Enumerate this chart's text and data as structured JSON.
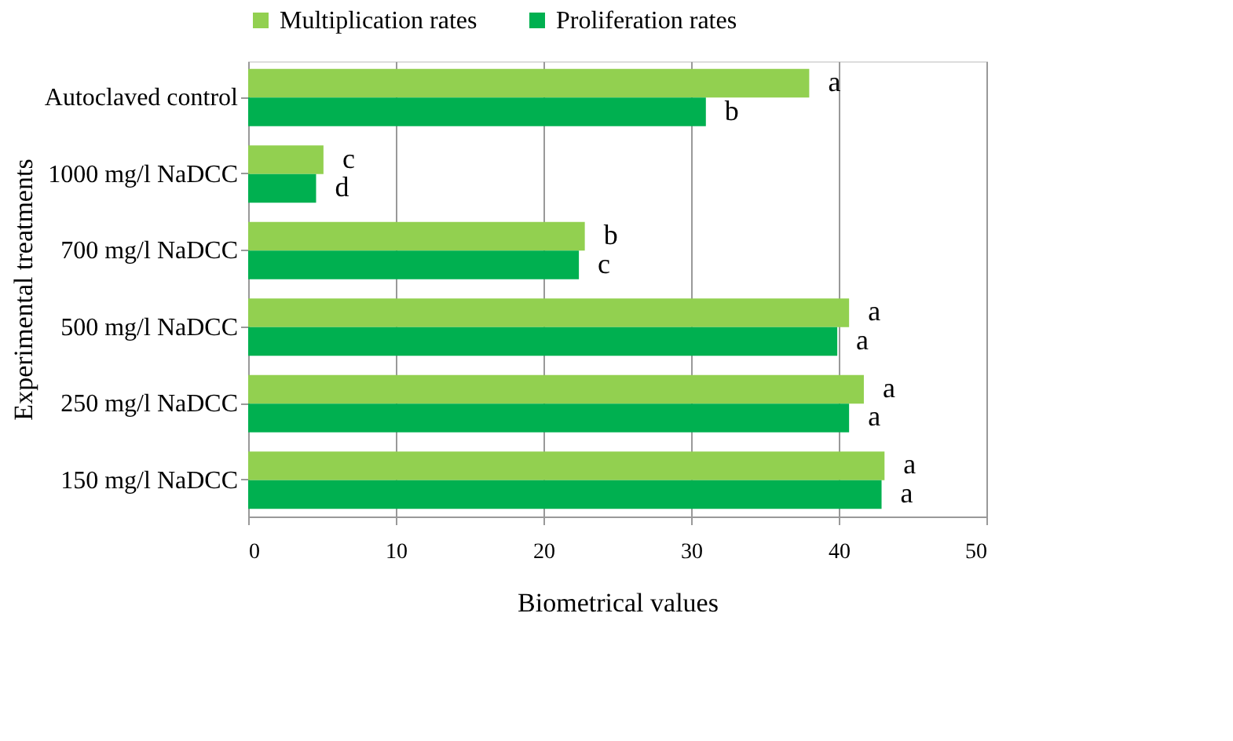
{
  "chart_data": {
    "type": "bar",
    "orientation": "horizontal",
    "xlabel": "Biometrical values",
    "ylabel": "Experimental treatments",
    "categories": [
      "Autoclaved control",
      "1000 mg/l NaDCC",
      "700 mg/l NaDCC",
      "500 mg/l NaDCC",
      "250 mg/l NaDCC",
      "150 mg/l NaDCC"
    ],
    "series": [
      {
        "name": "Multiplication rates",
        "color": "#92d050",
        "values": [
          38,
          5.1,
          22.8,
          40.7,
          41.7,
          43.1
        ]
      },
      {
        "name": "Proliferation rates",
        "color": "#00b050",
        "values": [
          31,
          4.6,
          22.4,
          39.9,
          40.7,
          42.9
        ]
      }
    ],
    "xlim": [
      0,
      50
    ],
    "xticks": [
      0,
      10,
      20,
      30,
      40,
      50
    ],
    "grid": "x",
    "legend": "top",
    "annotations": [
      {
        "text": "a",
        "x": 38,
        "y": "Autoclaved control"
      },
      {
        "text": "b",
        "x": 31,
        "y": "Autoclaved control"
      },
      {
        "text": "c",
        "x": 5.1,
        "y": "1000 mg/l NaDCC"
      },
      {
        "text": "d",
        "x": 4.6,
        "y": "1000 mg/l NaDCC"
      },
      {
        "text": "b",
        "x": 22.8,
        "y": "700 mg/l NaDCC"
      },
      {
        "text": "c",
        "x": 22.4,
        "y": "700 mg/l NaDCC"
      },
      {
        "text": "a",
        "x": 40.7,
        "y": "500 mg/l NaDCC"
      },
      {
        "text": "a",
        "x": 39.9,
        "y": "500 mg/l NaDCC"
      },
      {
        "text": "a",
        "x": 41.7,
        "y": "250 mg/l NaDCC"
      },
      {
        "text": "a",
        "x": 40.7,
        "y": "250 mg/l NaDCC"
      },
      {
        "text": "a",
        "x": 43.1,
        "y": "150 mg/l NaDCC"
      },
      {
        "text": "a",
        "x": 42.9,
        "y": "150 mg/l NaDCC"
      }
    ]
  }
}
